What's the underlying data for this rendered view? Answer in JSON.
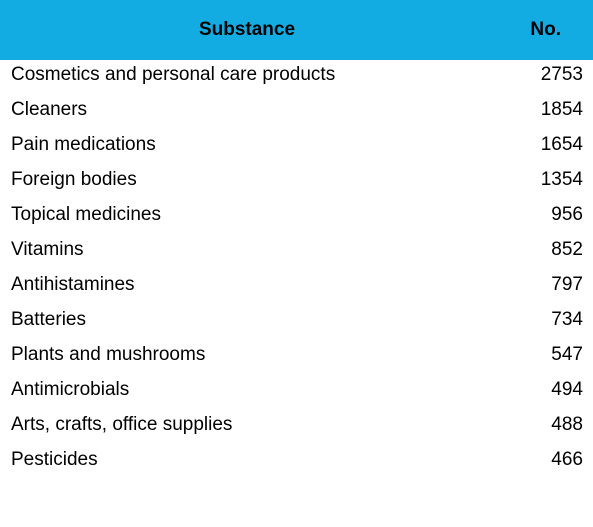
{
  "table": {
    "headers": {
      "substance": "Substance",
      "number": "No."
    },
    "header_color": "#12ace3",
    "rows": [
      {
        "substance": "Cosmetics and personal care products",
        "number": "2753"
      },
      {
        "substance": "Cleaners",
        "number": "1854"
      },
      {
        "substance": "Pain medications",
        "number": "1654"
      },
      {
        "substance": "Foreign bodies",
        "number": "1354"
      },
      {
        "substance": "Topical medicines",
        "number": "956"
      },
      {
        "substance": "Vitamins",
        "number": "852"
      },
      {
        "substance": "Antihistamines",
        "number": "797"
      },
      {
        "substance": "Batteries",
        "number": "734"
      },
      {
        "substance": "Plants and mushrooms",
        "number": "547"
      },
      {
        "substance": "Antimicrobials",
        "number": "494"
      },
      {
        "substance": "Arts, crafts, office supplies",
        "number": "488"
      },
      {
        "substance": "Pesticides",
        "number": "466"
      }
    ]
  }
}
